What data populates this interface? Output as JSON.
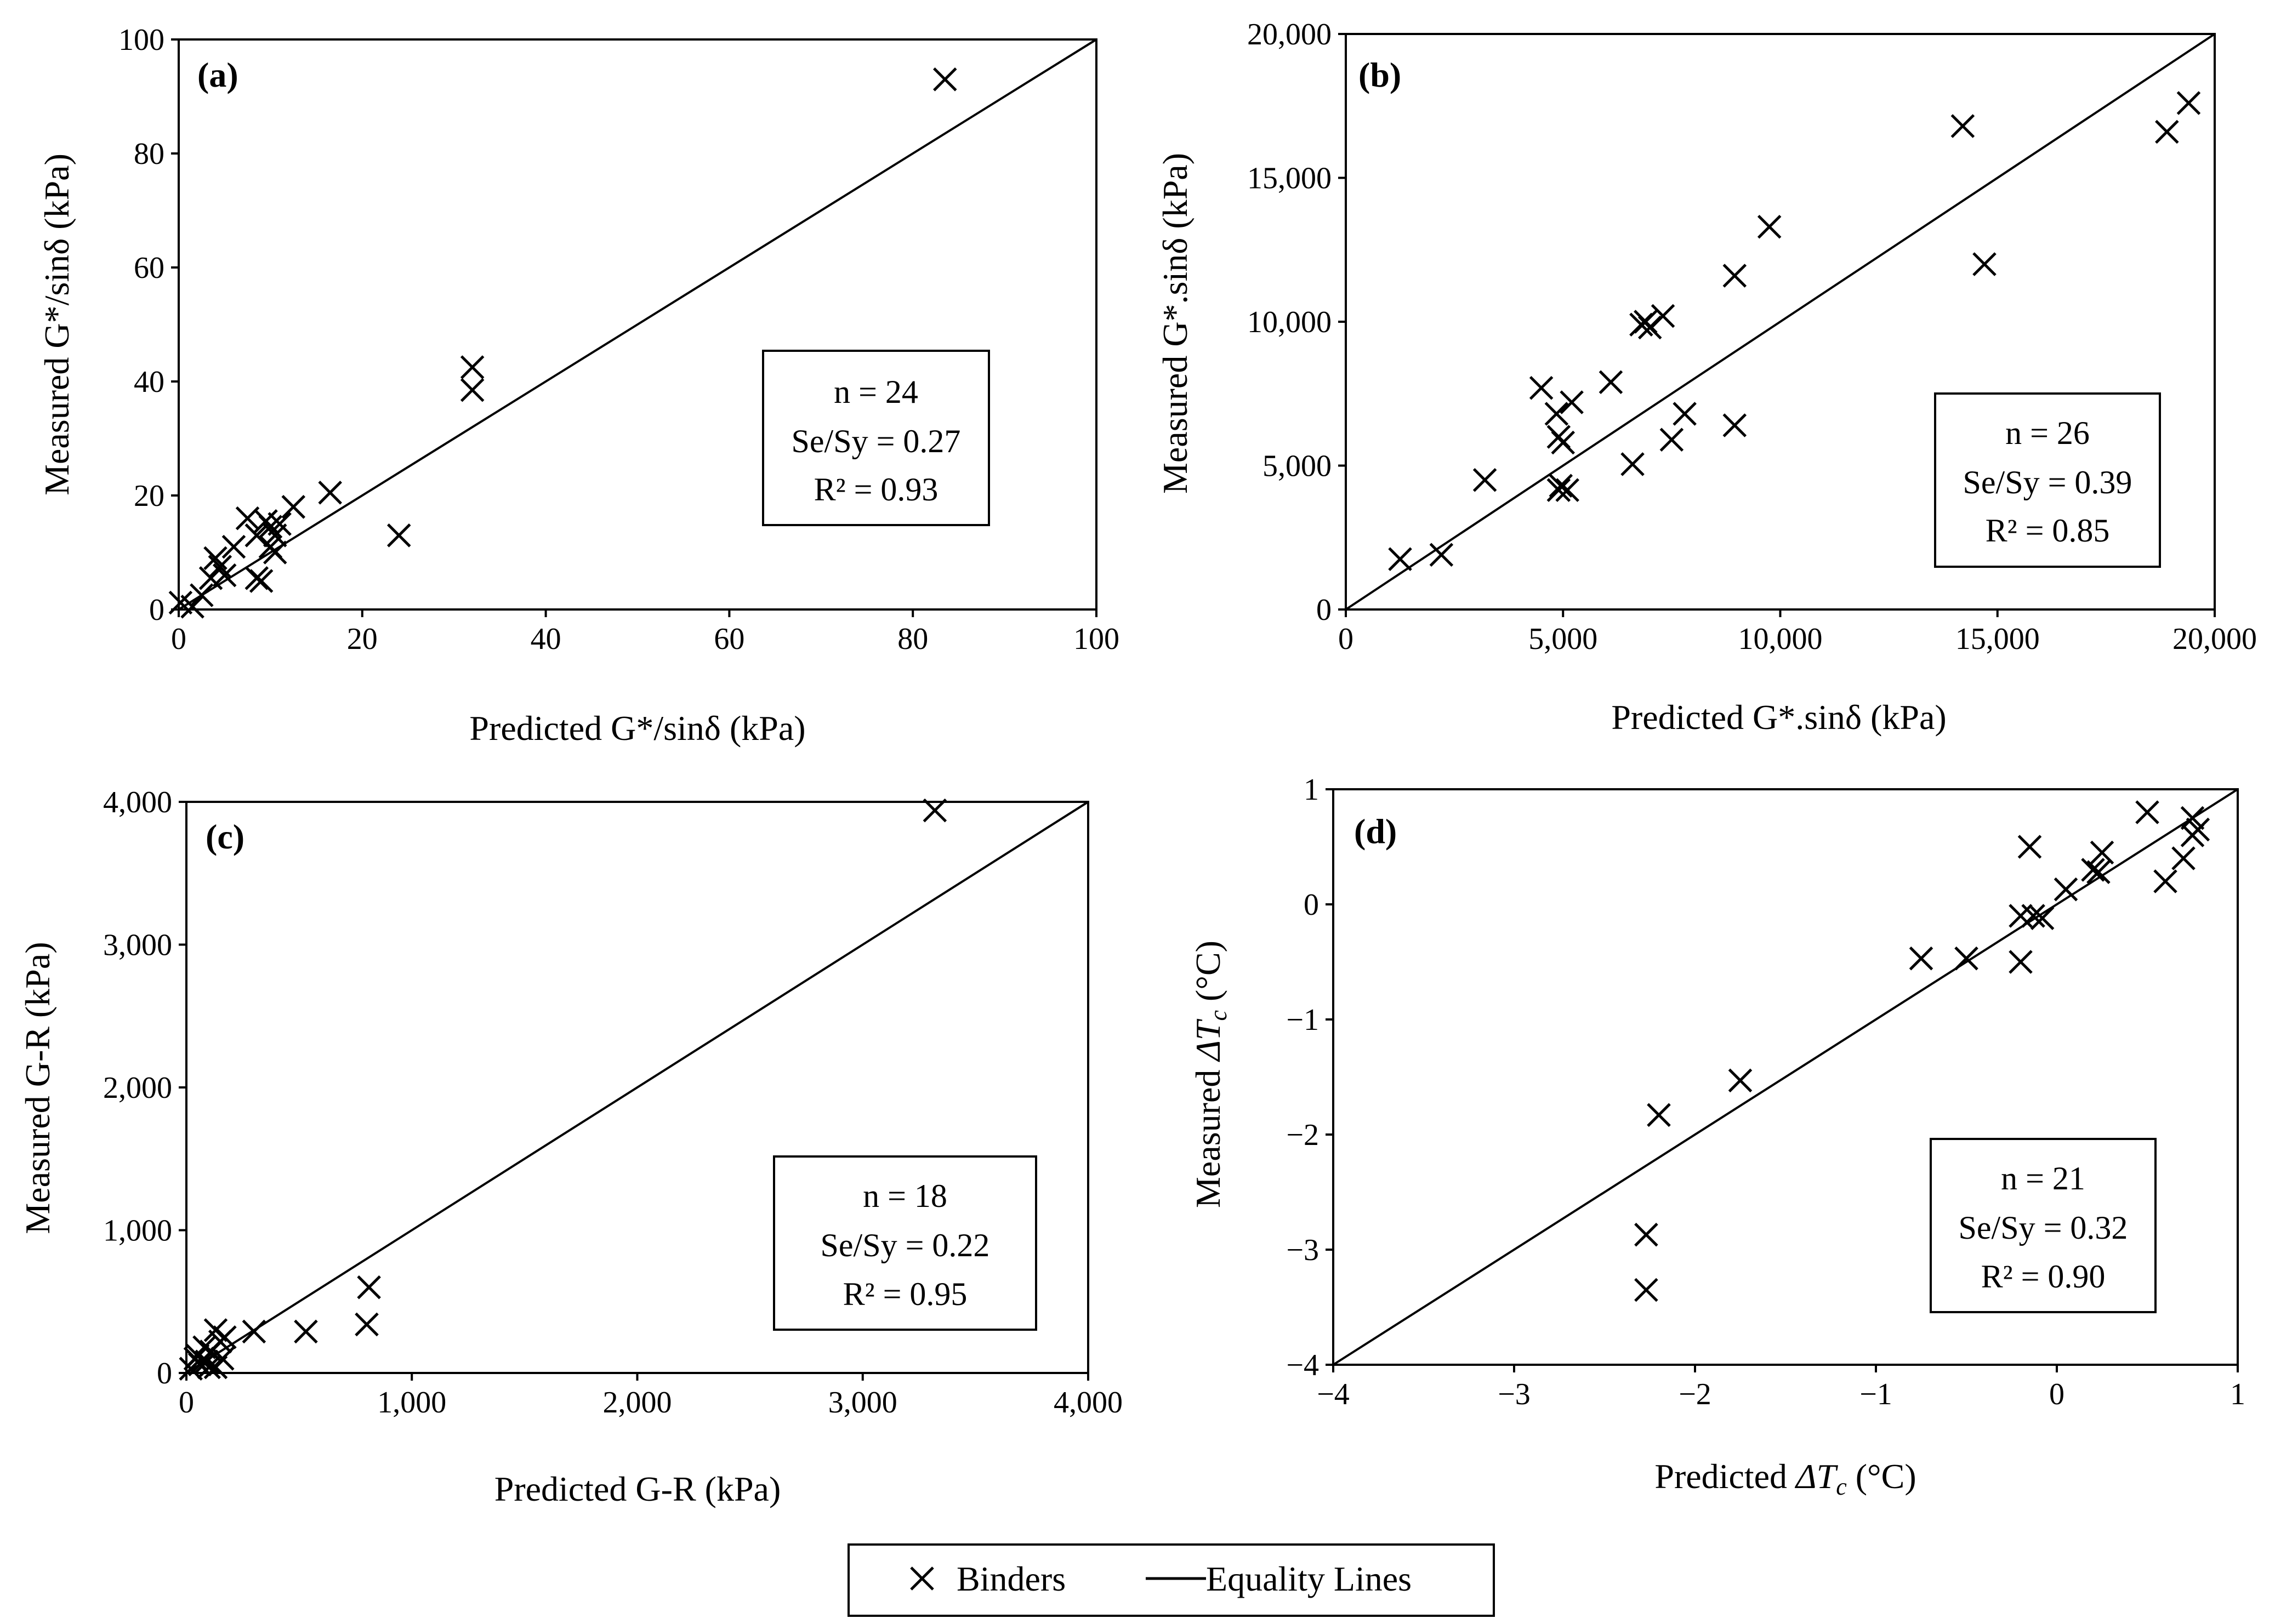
{
  "legend": {
    "marker_label": "Binders",
    "line_label": "Equality Lines"
  },
  "chart_data": [
    {
      "type": "scatter",
      "panel": "(a)",
      "xlabel": "Predicted G*/sinδ (kPa)",
      "ylabel": "Measured G*/sinδ (kPa)",
      "xlim": [
        0,
        100
      ],
      "ylim": [
        0,
        100
      ],
      "xticks": [
        0,
        20,
        40,
        60,
        80,
        100
      ],
      "yticks": [
        0,
        20,
        40,
        60,
        80,
        100
      ],
      "xtick_labels": [
        "0",
        "20",
        "40",
        "60",
        "80",
        "100"
      ],
      "ytick_labels": [
        "0",
        "20",
        "40",
        "60",
        "80",
        "100"
      ],
      "stats": {
        "n": "n = 24",
        "sesy": "Se/Sy = 0.27",
        "r2": "R² = 0.93"
      },
      "points": [
        [
          0.2,
          1.2
        ],
        [
          1.5,
          0.5
        ],
        [
          2.5,
          2.5
        ],
        [
          3.5,
          5.5
        ],
        [
          4.0,
          9.0
        ],
        [
          4.5,
          7.5
        ],
        [
          5.0,
          6.0
        ],
        [
          6.0,
          11.0
        ],
        [
          7.5,
          16.0
        ],
        [
          8.5,
          5.5
        ],
        [
          8.5,
          13.0
        ],
        [
          9.5,
          15.5
        ],
        [
          10.0,
          11.0
        ],
        [
          10.0,
          14.5
        ],
        [
          10.5,
          13.0
        ],
        [
          11.0,
          15.0
        ],
        [
          12.5,
          18.0
        ],
        [
          9.0,
          5.0
        ],
        [
          16.5,
          20.5
        ],
        [
          24.0,
          13.0
        ],
        [
          32.0,
          38.5
        ],
        [
          32.0,
          42.5
        ],
        [
          83.5,
          93.0
        ],
        [
          10.5,
          10.0
        ]
      ]
    },
    {
      "type": "scatter",
      "panel": "(b)",
      "xlabel": "Predicted G*.sinδ (kPa)",
      "ylabel": "Measured G*.sinδ (kPa)",
      "xlim": [
        0,
        20000
      ],
      "ylim": [
        0,
        20000
      ],
      "xticks": [
        0,
        5000,
        10000,
        15000,
        20000
      ],
      "yticks": [
        0,
        5000,
        10000,
        15000,
        20000
      ],
      "xtick_labels": [
        "0",
        "5,000",
        "10,000",
        "15,000",
        "20,000"
      ],
      "ytick_labels": [
        "0",
        "5,000",
        "10,000",
        "15,000",
        "20,000"
      ],
      "stats": {
        "n": "n = 26",
        "sesy": "Se/Sy = 0.39",
        "r2": "R² = 0.85"
      },
      "points": [
        [
          1250,
          1750
        ],
        [
          2200,
          1900
        ],
        [
          3200,
          4500
        ],
        [
          4500,
          7700
        ],
        [
          4850,
          6800
        ],
        [
          4900,
          6000
        ],
        [
          4900,
          4150
        ],
        [
          5100,
          4150
        ],
        [
          5200,
          7200
        ],
        [
          6100,
          7900
        ],
        [
          6600,
          5050
        ],
        [
          6800,
          9900
        ],
        [
          7000,
          9800
        ],
        [
          7300,
          10200
        ],
        [
          7500,
          5900
        ],
        [
          7800,
          6800
        ],
        [
          8950,
          11600
        ],
        [
          8950,
          6400
        ],
        [
          9750,
          13300
        ],
        [
          14200,
          16800
        ],
        [
          14700,
          12000
        ],
        [
          18900,
          16600
        ],
        [
          19400,
          17600
        ],
        [
          4950,
          4300
        ],
        [
          5000,
          5800
        ],
        [
          6900,
          10000
        ]
      ]
    },
    {
      "type": "scatter",
      "panel": "(c)",
      "xlabel": "Predicted G-R (kPa)",
      "ylabel": "Measured G-R (kPa)",
      "xlim": [
        0,
        4000
      ],
      "ylim": [
        0,
        4000
      ],
      "xticks": [
        0,
        1000,
        2000,
        3000,
        4000
      ],
      "yticks": [
        0,
        1000,
        2000,
        3000,
        4000
      ],
      "xtick_labels": [
        "0",
        "1,000",
        "2,000",
        "3,000",
        "4,000"
      ],
      "ytick_labels": [
        "0",
        "1,000",
        "2,000",
        "3,000",
        "4,000"
      ],
      "stats": {
        "n": "n = 18",
        "sesy": "Se/Sy = 0.22",
        "r2": "R² = 0.95"
      },
      "points": [
        [
          20,
          30
        ],
        [
          40,
          100
        ],
        [
          60,
          60
        ],
        [
          80,
          180
        ],
        [
          100,
          40
        ],
        [
          110,
          150
        ],
        [
          130,
          300
        ],
        [
          150,
          220
        ],
        [
          160,
          100
        ],
        [
          170,
          250
        ],
        [
          300,
          290
        ],
        [
          530,
          290
        ],
        [
          800,
          340
        ],
        [
          810,
          600
        ],
        [
          3320,
          3940
        ],
        [
          90,
          80
        ],
        [
          130,
          40
        ],
        [
          50,
          120
        ]
      ]
    },
    {
      "type": "scatter",
      "panel": "(d)",
      "xlabel": "Predicted ΔTc (°C)",
      "xlabel_parts": {
        "pre": "Predicted ",
        "sym": "ΔT",
        "sub": "c",
        "post": " (°C)"
      },
      "ylabel": "Measured ΔTc (°C)",
      "ylabel_parts": {
        "pre": "Measured ",
        "sym": "ΔT",
        "sub": "c",
        "post": " (°C)"
      },
      "xlim": [
        -4,
        1
      ],
      "ylim": [
        -4,
        1
      ],
      "xticks": [
        -4,
        -3,
        -2,
        -1,
        0,
        1
      ],
      "yticks": [
        -4,
        -3,
        -2,
        -1,
        0,
        1
      ],
      "xtick_labels": [
        "−4",
        "−3",
        "−2",
        "−1",
        "0",
        "1"
      ],
      "ytick_labels": [
        "−4",
        "−3",
        "−2",
        "−1",
        "0",
        "1"
      ],
      "stats": {
        "n": "n = 21",
        "sesy": "Se/Sy = 0.32",
        "r2": "R² = 0.90"
      },
      "points": [
        [
          -2.27,
          -3.35
        ],
        [
          -2.27,
          -2.87
        ],
        [
          -2.2,
          -1.83
        ],
        [
          -1.75,
          -1.53
        ],
        [
          -0.75,
          -0.47
        ],
        [
          -0.5,
          -0.47
        ],
        [
          -0.2,
          -0.5
        ],
        [
          -0.2,
          -0.1
        ],
        [
          -0.15,
          0.5
        ],
        [
          -0.13,
          -0.1
        ],
        [
          -0.08,
          -0.12
        ],
        [
          0.05,
          0.13
        ],
        [
          0.2,
          0.3
        ],
        [
          0.23,
          0.28
        ],
        [
          0.25,
          0.45
        ],
        [
          0.5,
          0.8
        ],
        [
          0.6,
          0.2
        ],
        [
          0.7,
          0.4
        ],
        [
          0.75,
          0.75
        ],
        [
          0.78,
          0.65
        ],
        [
          0.75,
          0.6
        ]
      ]
    }
  ]
}
